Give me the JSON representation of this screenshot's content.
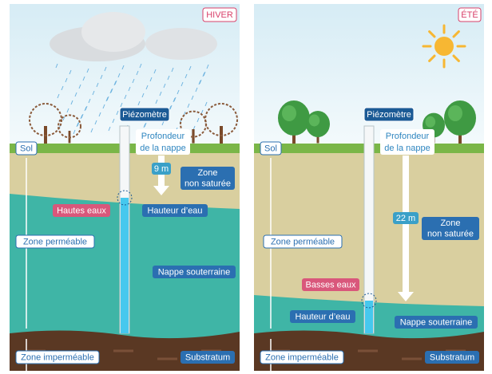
{
  "panels": [
    {
      "season": "HIVER",
      "piezometer": "Piézomètre",
      "depth_label": [
        "Profondeur",
        "de la nappe"
      ],
      "depth": "9 m",
      "unsaturated_zone": [
        "Zone",
        "non saturée"
      ],
      "water_level": "Hautes eaux",
      "water_height": "Hauteur d’eau",
      "soil": "Sol",
      "permeable_zone": "Zone perméable",
      "aquifer": "Nappe souterraine",
      "impermeable_zone": "Zone imperméable",
      "substratum": "Substratum"
    },
    {
      "season": "ÉTÉ",
      "piezometer": "Piézomètre",
      "depth_label": [
        "Profondeur",
        "de la nappe"
      ],
      "depth": "22 m",
      "unsaturated_zone": [
        "Zone",
        "non saturée"
      ],
      "water_level": "Basses eaux",
      "water_height": "Hauteur d’eau",
      "soil": "Sol",
      "permeable_zone": "Zone perméable",
      "aquifer": "Nappe souterraine",
      "impermeable_zone": "Zone imperméable",
      "substratum": "Substratum"
    }
  ]
}
